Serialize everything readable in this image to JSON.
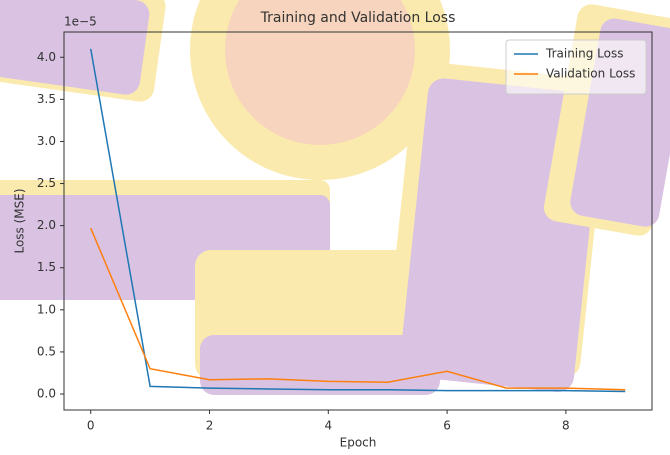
{
  "chart_data": {
    "type": "line",
    "title": "Training and Validation Loss",
    "x_label": "Epoch",
    "y_label": "Loss (MSE)",
    "y_offset_label": "1e−5",
    "x": [
      0,
      1,
      2,
      3,
      4,
      5,
      6,
      7,
      8,
      9
    ],
    "series": [
      {
        "name": "Training Loss",
        "color": "#1f77b4",
        "values": [
          4.1,
          0.09,
          0.07,
          0.06,
          0.05,
          0.05,
          0.04,
          0.04,
          0.04,
          0.03
        ]
      },
      {
        "name": "Validation Loss",
        "color": "#ff7f0e",
        "values": [
          1.97,
          0.3,
          0.17,
          0.18,
          0.15,
          0.14,
          0.27,
          0.07,
          0.07,
          0.05
        ]
      }
    ],
    "xlim": [
      -0.45,
      9.45
    ],
    "xticks": [
      0,
      2,
      4,
      6,
      8
    ],
    "ylim": [
      -0.19,
      4.3
    ],
    "yticks": [
      {
        "value": 0,
        "label": "0.0"
      },
      0.5,
      {
        "value": 1,
        "label": "1.0"
      },
      1.5,
      {
        "value": 2,
        "label": "2.0"
      },
      2.5,
      {
        "value": 3,
        "label": "3.0"
      },
      3.5,
      {
        "value": 4,
        "label": "4.0"
      }
    ],
    "grid": false,
    "legend": "upper right"
  }
}
